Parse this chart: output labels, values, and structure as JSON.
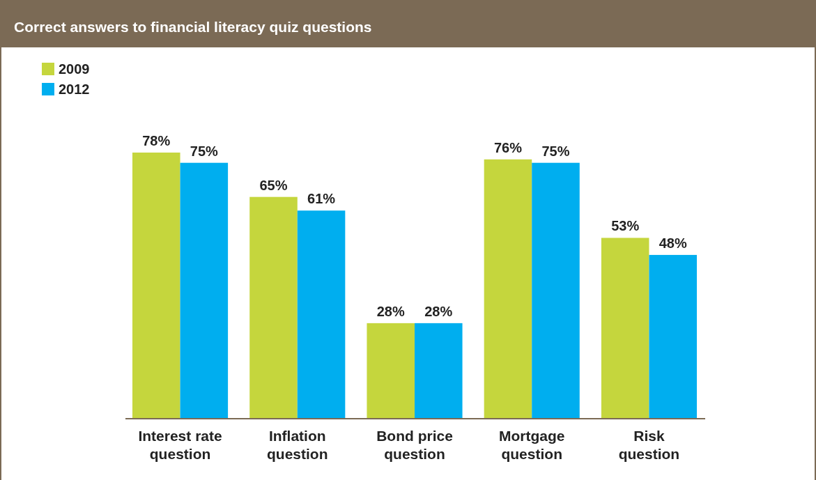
{
  "chart_data": {
    "type": "bar",
    "title": "Correct answers to financial literacy quiz questions",
    "categories": [
      "Interest rate question",
      "Inflation question",
      "Bond price question",
      "Mortgage question",
      "Risk question"
    ],
    "series": [
      {
        "name": "2009",
        "color": "#c5d63d",
        "values": [
          78,
          65,
          28,
          76,
          53
        ],
        "value_labels": [
          "78%",
          "65%",
          "28%",
          "76%",
          "53%"
        ]
      },
      {
        "name": "2012",
        "color": "#00aeef",
        "values": [
          75,
          61,
          28,
          75,
          48
        ],
        "value_labels": [
          "75%",
          "61%",
          "28%",
          "75%",
          "48%"
        ]
      }
    ],
    "legend": "top left"
  }
}
